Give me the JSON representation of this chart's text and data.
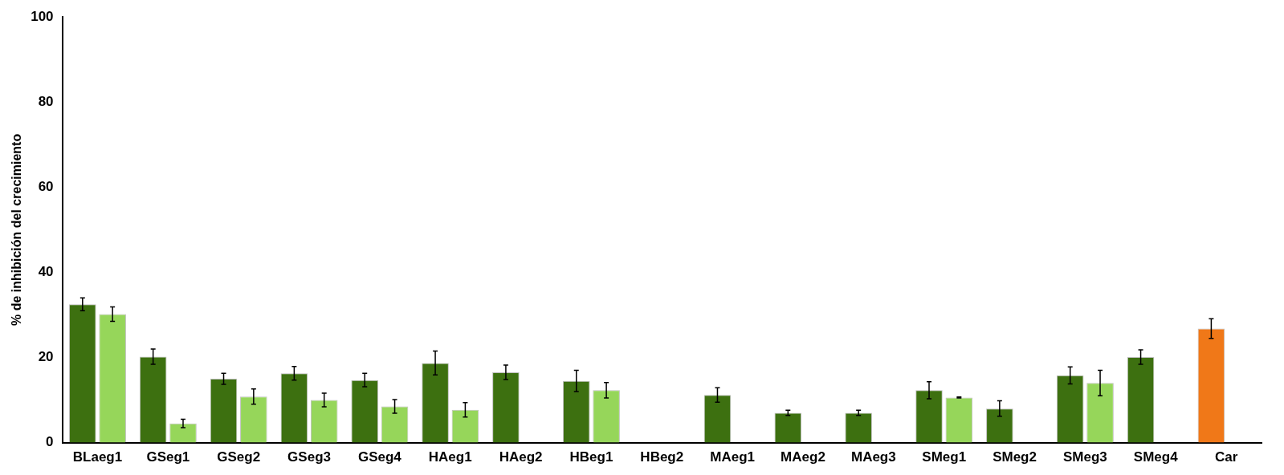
{
  "chart_data": {
    "type": "bar",
    "ylabel": "% de inhibición del crecimiento",
    "categories": [
      "BLaeg1",
      "GSeg1",
      "GSeg2",
      "GSeg3",
      "GSeg4",
      "HAeg1",
      "HAeg2",
      "HBeg1",
      "HBeg2",
      "MAeg1",
      "MAeg2",
      "MAeg3",
      "SMeg1",
      "SMeg2",
      "SMeg3",
      "SMeg4",
      "Car"
    ],
    "series": [
      {
        "color": "#3d7010",
        "colors": [
          null,
          null,
          null,
          null,
          null,
          null,
          null,
          null,
          null,
          null,
          null,
          null,
          null,
          null,
          null,
          null,
          "#f07818"
        ],
        "values": [
          32.5,
          20.2,
          15,
          16.3,
          14.7,
          18.7,
          16.5,
          14.5,
          null,
          11.2,
          7,
          7,
          12.3,
          8,
          15.8,
          20.1,
          26.8
        ],
        "errors": [
          1.5,
          1.8,
          1.3,
          1.6,
          1.6,
          2.8,
          1.7,
          2.5,
          null,
          1.7,
          0.6,
          0.6,
          2,
          1.8,
          2,
          1.7,
          2.3
        ]
      },
      {
        "color": "#96d65a",
        "values": [
          30.2,
          4.5,
          10.8,
          10,
          8.5,
          7.7,
          null,
          12.3,
          null,
          null,
          null,
          null,
          10.6,
          null,
          14,
          null,
          null
        ],
        "errors": [
          1.7,
          1,
          1.8,
          1.6,
          1.6,
          1.7,
          null,
          1.8,
          null,
          null,
          null,
          null,
          0.1,
          null,
          3,
          null,
          null
        ]
      }
    ],
    "ylim": [
      0,
      100
    ],
    "yticks": [
      0,
      20,
      40,
      60,
      80,
      100
    ],
    "grid": false,
    "legend": false
  }
}
